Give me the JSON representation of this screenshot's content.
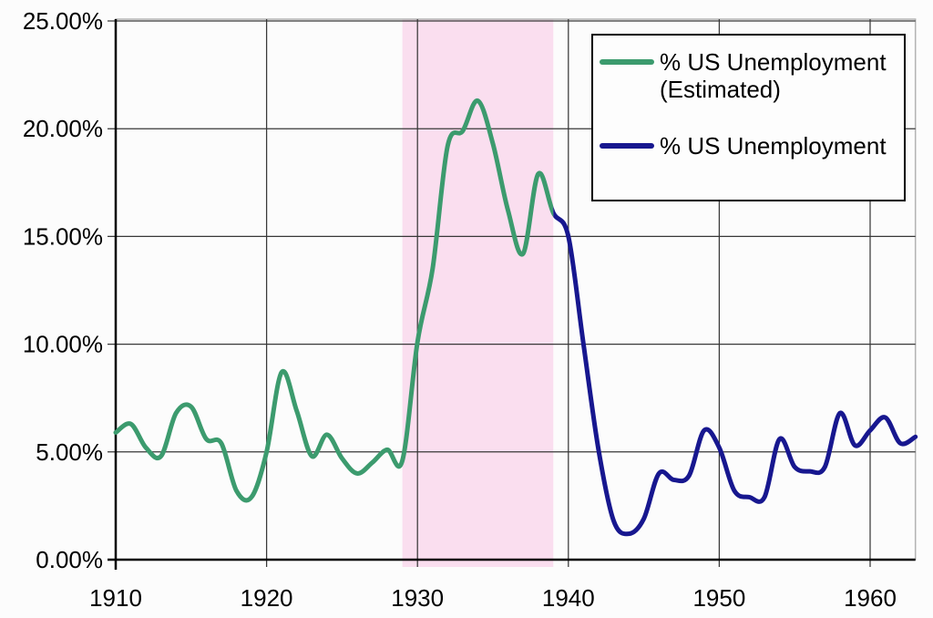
{
  "chart_data": {
    "type": "line",
    "title": "",
    "xlabel": "",
    "ylabel": "",
    "xlim": [
      1910,
      1963
    ],
    "ylim": [
      0,
      25
    ],
    "grid": true,
    "legend_position": "top-right",
    "x_ticks": [
      1910,
      1920,
      1930,
      1940,
      1950,
      1960
    ],
    "x_tick_labels": [
      "1910",
      "1920",
      "1930",
      "1940",
      "1950",
      "1960"
    ],
    "y_ticks": [
      0,
      5,
      10,
      15,
      20,
      25
    ],
    "y_tick_labels": [
      "0.00%",
      "5.00%",
      "10.00%",
      "15.00%",
      "20.00%",
      "25.00%"
    ],
    "highlight_band": {
      "from": 1929,
      "to": 1939,
      "color": "#FADEEF"
    },
    "series": [
      {
        "name": "% US Unemployment (Estimated)",
        "color": "#3C9B6E",
        "years": [
          1910,
          1911,
          1912,
          1913,
          1914,
          1915,
          1916,
          1917,
          1918,
          1919,
          1920,
          1921,
          1922,
          1923,
          1924,
          1925,
          1926,
          1927,
          1928,
          1929,
          1930,
          1931,
          1932,
          1933,
          1934,
          1935,
          1936,
          1937,
          1938,
          1939
        ],
        "values": [
          5.9,
          6.3,
          5.2,
          4.8,
          6.8,
          7.1,
          5.6,
          5.4,
          3.2,
          2.9,
          5.0,
          8.7,
          6.9,
          4.8,
          5.8,
          4.7,
          4.0,
          4.5,
          5.1,
          4.6,
          10.1,
          13.5,
          19.2,
          19.9,
          21.3,
          19.3,
          16.2,
          14.2,
          17.9,
          16.1
        ]
      },
      {
        "name": "% US Unemployment",
        "color": "#17178F",
        "years": [
          1939,
          1940,
          1941,
          1942,
          1943,
          1944,
          1945,
          1946,
          1947,
          1948,
          1949,
          1950,
          1951,
          1952,
          1953,
          1954,
          1955,
          1956,
          1957,
          1958,
          1959,
          1960,
          1961,
          1962,
          1963
        ],
        "values": [
          16.1,
          15.0,
          10.0,
          5.1,
          1.8,
          1.2,
          1.9,
          4.0,
          3.7,
          3.9,
          6.0,
          5.2,
          3.2,
          2.9,
          2.9,
          5.6,
          4.3,
          4.1,
          4.3,
          6.8,
          5.3,
          6.0,
          6.6,
          5.4,
          5.7
        ]
      }
    ]
  }
}
